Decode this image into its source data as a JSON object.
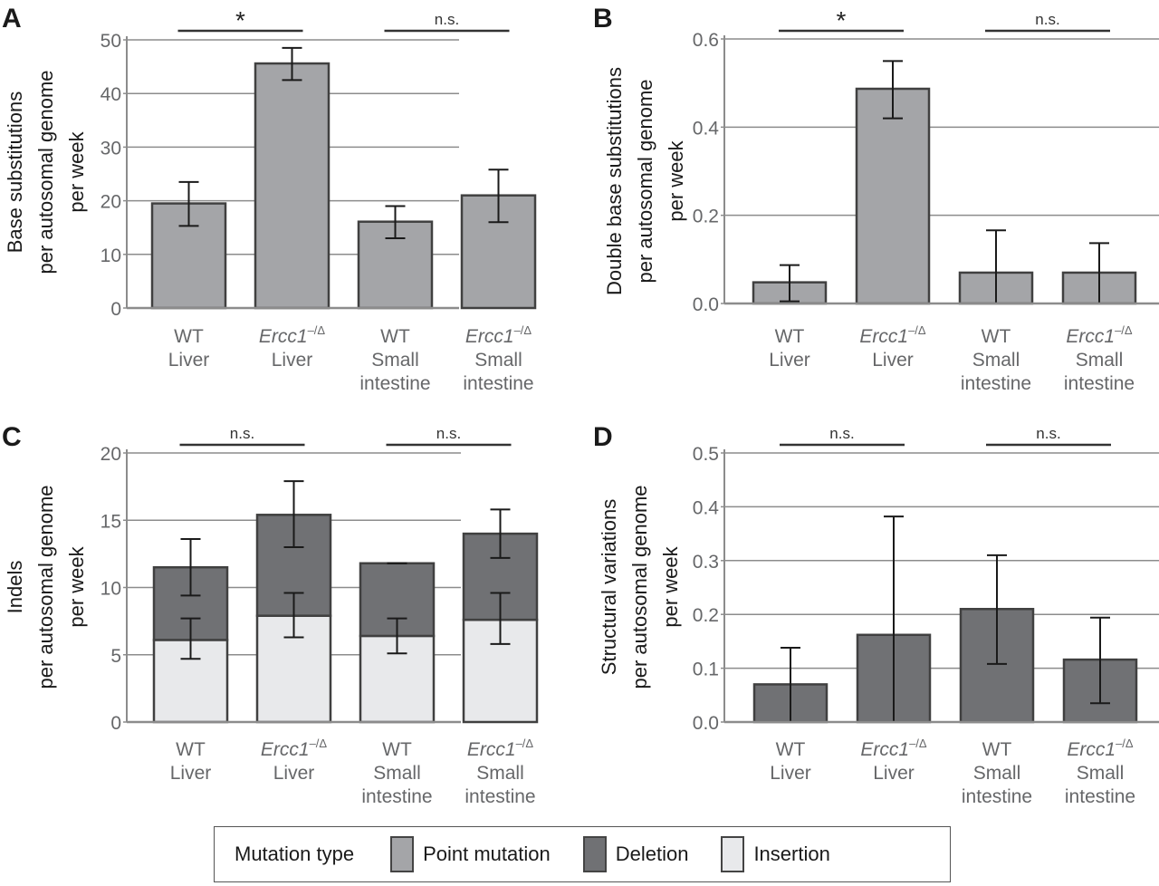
{
  "colors": {
    "point_mutation": "#a4a5a8",
    "deletion": "#707174",
    "insertion": "#e8e9eb",
    "bar_border": "#404040",
    "grid": "#8c8c8c",
    "error_bar": "#1a1a1a"
  },
  "legend": {
    "title": "Mutation type",
    "items": [
      {
        "label": "Point mutation",
        "color_key": "point_mutation"
      },
      {
        "label": "Deletion",
        "color_key": "deletion"
      },
      {
        "label": "Insertion",
        "color_key": "insertion"
      }
    ]
  },
  "chart_data": [
    {
      "panel": "A",
      "type": "bar",
      "categories": [
        {
          "line1": "WT",
          "line1_italic": false,
          "sup": "",
          "line2": "Liver",
          "line3": ""
        },
        {
          "line1": "Ercc1",
          "line1_italic": true,
          "sup": "–/Δ",
          "line2": "Liver",
          "line3": ""
        },
        {
          "line1": "WT",
          "line1_italic": false,
          "sup": "",
          "line2": "Small",
          "line3": "intestine"
        },
        {
          "line1": "Ercc1",
          "line1_italic": true,
          "sup": "–/Δ",
          "line2": "Small",
          "line3": "intestine"
        }
      ],
      "ylabel": [
        "Base substitutions",
        "per autosomal genome",
        "per week"
      ],
      "ylim": [
        0,
        50
      ],
      "yticks": [
        "0",
        "10",
        "20",
        "30",
        "40",
        "50"
      ],
      "ytick_values": [
        0,
        10,
        20,
        30,
        40,
        50
      ],
      "grid": true,
      "stacked": false,
      "series": [
        {
          "name": "Point mutation",
          "color_key": "point_mutation",
          "values": [
            19.5,
            45.6,
            16.1,
            21.0
          ],
          "err_low": [
            15.3,
            42.5,
            13.0,
            16.0
          ],
          "err_high": [
            23.5,
            48.5,
            19.0,
            25.8
          ]
        }
      ],
      "significance": [
        {
          "from": 0,
          "to": 1,
          "label": "*"
        },
        {
          "from": 2,
          "to": 3,
          "label": "n.s."
        }
      ]
    },
    {
      "panel": "B",
      "type": "bar",
      "categories": [
        {
          "line1": "WT",
          "line1_italic": false,
          "sup": "",
          "line2": "Liver",
          "line3": ""
        },
        {
          "line1": "Ercc1",
          "line1_italic": true,
          "sup": "–/Δ",
          "line2": "Liver",
          "line3": ""
        },
        {
          "line1": "WT",
          "line1_italic": false,
          "sup": "",
          "line2": "Small",
          "line3": "intestine"
        },
        {
          "line1": "Ercc1",
          "line1_italic": true,
          "sup": "–/Δ",
          "line2": "Small",
          "line3": "intestine"
        }
      ],
      "ylabel": [
        "Double base substitutions",
        "per autosomal genome",
        "per week"
      ],
      "ylim": [
        0,
        0.6
      ],
      "yticks": [
        "0.0",
        "0.2",
        "0.4",
        "0.6"
      ],
      "ytick_values": [
        0,
        0.2,
        0.4,
        0.6
      ],
      "grid": true,
      "stacked": false,
      "series": [
        {
          "name": "Point mutation",
          "color_key": "point_mutation",
          "values": [
            0.048,
            0.487,
            0.07,
            0.07
          ],
          "err_low": [
            0.005,
            0.42,
            0.0,
            0.0
          ],
          "err_high": [
            0.087,
            0.55,
            0.166,
            0.137
          ]
        }
      ],
      "significance": [
        {
          "from": 0,
          "to": 1,
          "label": "*"
        },
        {
          "from": 2,
          "to": 3,
          "label": "n.s."
        }
      ]
    },
    {
      "panel": "C",
      "type": "bar",
      "categories": [
        {
          "line1": "WT",
          "line1_italic": false,
          "sup": "",
          "line2": "Liver",
          "line3": ""
        },
        {
          "line1": "Ercc1",
          "line1_italic": true,
          "sup": "–/Δ",
          "line2": "Liver",
          "line3": ""
        },
        {
          "line1": "WT",
          "line1_italic": false,
          "sup": "",
          "line2": "Small",
          "line3": "intestine"
        },
        {
          "line1": "Ercc1",
          "line1_italic": true,
          "sup": "–/Δ",
          "line2": "Small",
          "line3": "intestine"
        }
      ],
      "ylabel": [
        "Indels",
        "per autosomal genome",
        "per week"
      ],
      "ylim": [
        0,
        20
      ],
      "yticks": [
        "0",
        "5",
        "10",
        "15",
        "20"
      ],
      "ytick_values": [
        0,
        5,
        10,
        15,
        20
      ],
      "grid": true,
      "stacked": true,
      "series": [
        {
          "name": "Insertion",
          "color_key": "insertion",
          "values": [
            6.1,
            7.9,
            6.4,
            7.6
          ],
          "err_low": [
            4.7,
            6.3,
            5.1,
            5.8
          ],
          "err_high": [
            7.7,
            9.6,
            7.7,
            9.6
          ]
        },
        {
          "name": "Deletion",
          "color_key": "deletion",
          "values": [
            5.4,
            7.5,
            5.4,
            6.4
          ],
          "totals": [
            11.5,
            15.4,
            11.8,
            14.0
          ],
          "err_low": [
            9.4,
            13.0,
            11.8,
            12.2
          ],
          "err_high": [
            13.6,
            17.9,
            11.8,
            15.8
          ]
        }
      ],
      "significance": [
        {
          "from": 0,
          "to": 1,
          "label": "n.s."
        },
        {
          "from": 2,
          "to": 3,
          "label": "n.s."
        }
      ]
    },
    {
      "panel": "D",
      "type": "bar",
      "categories": [
        {
          "line1": "WT",
          "line1_italic": false,
          "sup": "",
          "line2": "Liver",
          "line3": ""
        },
        {
          "line1": "Ercc1",
          "line1_italic": true,
          "sup": "–/Δ",
          "line2": "Liver",
          "line3": ""
        },
        {
          "line1": "WT",
          "line1_italic": false,
          "sup": "",
          "line2": "Small",
          "line3": "intestine"
        },
        {
          "line1": "Ercc1",
          "line1_italic": true,
          "sup": "–/Δ",
          "line2": "Small",
          "line3": "intestine"
        }
      ],
      "ylabel": [
        "Structural variations",
        "per autosomal genome",
        "per week"
      ],
      "ylim": [
        0,
        0.5
      ],
      "yticks": [
        "0.0",
        "0.1",
        "0.2",
        "0.3",
        "0.4",
        "0.5"
      ],
      "ytick_values": [
        0,
        0.1,
        0.2,
        0.3,
        0.4,
        0.5
      ],
      "grid": true,
      "stacked": false,
      "series": [
        {
          "name": "Deletion",
          "color_key": "deletion",
          "values": [
            0.07,
            0.162,
            0.21,
            0.116
          ],
          "err_low": [
            0.0,
            0.0,
            0.108,
            0.035
          ],
          "err_high": [
            0.138,
            0.382,
            0.31,
            0.194
          ]
        }
      ],
      "significance": [
        {
          "from": 0,
          "to": 1,
          "label": "n.s."
        },
        {
          "from": 2,
          "to": 3,
          "label": "n.s."
        }
      ]
    }
  ]
}
